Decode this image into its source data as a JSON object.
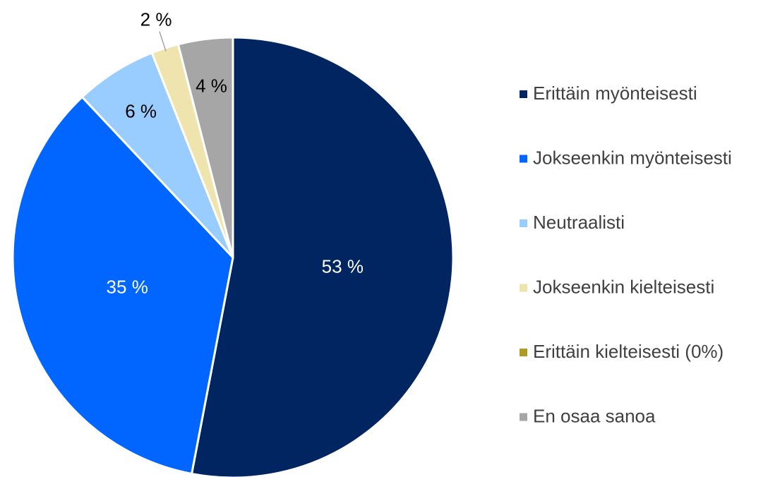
{
  "chart_data": {
    "type": "pie",
    "categories": [
      "Erittäin myönteisesti",
      "Jokseenkin myönteisesti",
      "Neutraalisti",
      "Jokseenkin kielteisesti",
      "Erittäin kielteisesti (0%)",
      "En osaa sanoa"
    ],
    "values": [
      53,
      35,
      6,
      2,
      0,
      4
    ],
    "value_labels": [
      "53 %",
      "35 %",
      "6 %",
      "2 %",
      null,
      "4 %"
    ],
    "colors": [
      "#002561",
      "#0066ff",
      "#99ccff",
      "#efe4ad",
      "#b09a22",
      "#a6a6a6"
    ],
    "legend": "right"
  }
}
